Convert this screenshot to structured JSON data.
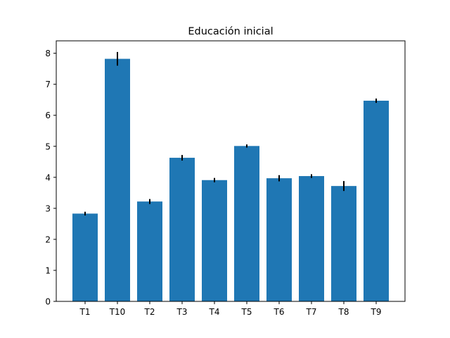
{
  "chart_data": {
    "type": "bar",
    "title": "Educación inicial",
    "xlabel": "",
    "ylabel": "",
    "categories": [
      "T1",
      "T10",
      "T2",
      "T3",
      "T4",
      "T5",
      "T6",
      "T7",
      "T8",
      "T9"
    ],
    "values": [
      2.83,
      7.82,
      3.22,
      4.63,
      3.91,
      5.01,
      3.97,
      4.04,
      3.72,
      6.47
    ],
    "errors": [
      0.06,
      0.22,
      0.08,
      0.09,
      0.07,
      0.05,
      0.1,
      0.06,
      0.16,
      0.07
    ],
    "ylim": [
      0,
      8.4
    ],
    "yticks": [
      0,
      1,
      2,
      3,
      4,
      5,
      6,
      7,
      8
    ],
    "ytick_labels": [
      "0",
      "1",
      "2",
      "3",
      "4",
      "5",
      "6",
      "7",
      "8"
    ],
    "grid": false,
    "bar_color": "#1f77b4",
    "error_color": "#000000"
  }
}
